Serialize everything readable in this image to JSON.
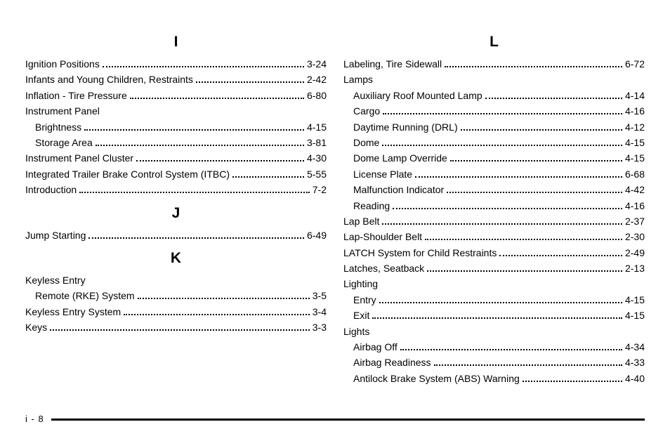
{
  "left": {
    "sections": [
      {
        "letter": "I",
        "entries": [
          {
            "label": "Ignition Positions",
            "page": "3-24",
            "sub": false
          },
          {
            "label": "Infants and Young Children, Restraints",
            "page": "2-42",
            "sub": false
          },
          {
            "label": "Inflation - Tire Pressure",
            "page": "6-80",
            "sub": false
          },
          {
            "label": "Instrument Panel",
            "page": "",
            "sub": false,
            "group": true
          },
          {
            "label": "Brightness",
            "page": "4-15",
            "sub": true
          },
          {
            "label": "Storage Area",
            "page": "3-81",
            "sub": true
          },
          {
            "label": "Instrument Panel Cluster",
            "page": "4-30",
            "sub": false
          },
          {
            "label": "Integrated Trailer Brake Control System (ITBC)",
            "page": "5-55",
            "sub": false
          },
          {
            "label": "Introduction",
            "page": "7-2",
            "sub": false
          }
        ]
      },
      {
        "letter": "J",
        "entries": [
          {
            "label": "Jump Starting",
            "page": "6-49",
            "sub": false
          }
        ]
      },
      {
        "letter": "K",
        "entries": [
          {
            "label": "Keyless Entry",
            "page": "",
            "sub": false,
            "group": true
          },
          {
            "label": "Remote (RKE) System",
            "page": "3-5",
            "sub": true
          },
          {
            "label": "Keyless Entry System",
            "page": "3-4",
            "sub": false
          },
          {
            "label": "Keys",
            "page": "3-3",
            "sub": false
          }
        ]
      }
    ]
  },
  "right": {
    "sections": [
      {
        "letter": "L",
        "entries": [
          {
            "label": "Labeling, Tire Sidewall",
            "page": "6-72",
            "sub": false
          },
          {
            "label": "Lamps",
            "page": "",
            "sub": false,
            "group": true
          },
          {
            "label": "Auxiliary Roof Mounted Lamp",
            "page": "4-14",
            "sub": true
          },
          {
            "label": "Cargo",
            "page": "4-16",
            "sub": true
          },
          {
            "label": "Daytime Running (DRL)",
            "page": "4-12",
            "sub": true
          },
          {
            "label": "Dome",
            "page": "4-15",
            "sub": true
          },
          {
            "label": "Dome Lamp Override",
            "page": "4-15",
            "sub": true
          },
          {
            "label": "License Plate",
            "page": "6-68",
            "sub": true
          },
          {
            "label": "Malfunction Indicator",
            "page": "4-42",
            "sub": true
          },
          {
            "label": "Reading",
            "page": "4-16",
            "sub": true
          },
          {
            "label": "Lap Belt",
            "page": "2-37",
            "sub": false
          },
          {
            "label": "Lap-Shoulder Belt",
            "page": "2-30",
            "sub": false
          },
          {
            "label": "LATCH System for Child Restraints",
            "page": "2-49",
            "sub": false
          },
          {
            "label": "Latches, Seatback",
            "page": "2-13",
            "sub": false
          },
          {
            "label": "Lighting",
            "page": "",
            "sub": false,
            "group": true
          },
          {
            "label": "Entry",
            "page": "4-15",
            "sub": true
          },
          {
            "label": "Exit",
            "page": "4-15",
            "sub": true
          },
          {
            "label": "Lights",
            "page": "",
            "sub": false,
            "group": true
          },
          {
            "label": "Airbag Off",
            "page": "4-34",
            "sub": true
          },
          {
            "label": "Airbag Readiness",
            "page": "4-33",
            "sub": true
          },
          {
            "label": "Antilock Brake System (ABS) Warning",
            "page": "4-40",
            "sub": true
          }
        ]
      }
    ]
  },
  "footer": {
    "page_label": "i - 8"
  }
}
